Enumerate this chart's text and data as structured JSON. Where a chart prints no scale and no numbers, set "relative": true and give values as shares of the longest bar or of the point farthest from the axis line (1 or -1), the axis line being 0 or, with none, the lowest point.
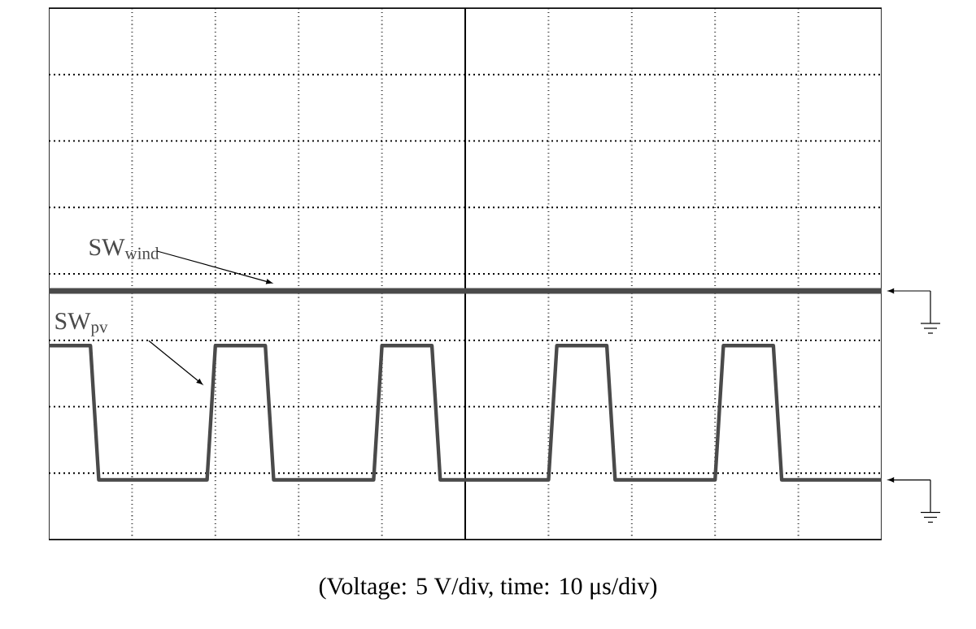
{
  "chart_data": {
    "type": "line",
    "relative": true,
    "grid": true,
    "marker": "none",
    "line_style": "solid",
    "categories": [
      null,
      null,
      null,
      null,
      null,
      null,
      null,
      null,
      null,
      null,
      null,
      null,
      null,
      null,
      null,
      null,
      null,
      null,
      null,
      null,
      null,
      null,
      null,
      null,
      null,
      null,
      null,
      null,
      null,
      null,
      null,
      null,
      null,
      null,
      null,
      null,
      null,
      null,
      null,
      null,
      null,
      null,
      null,
      null,
      null,
      null,
      null,
      null,
      null,
      null,
      null,
      null,
      null,
      null,
      null,
      null,
      null,
      null,
      null,
      null,
      null,
      null,
      null,
      null,
      null,
      null,
      null,
      null,
      null,
      null,
      null,
      null,
      null,
      null,
      null,
      null,
      null,
      null,
      null,
      null,
      null,
      null,
      null,
      null,
      null,
      null,
      null,
      null,
      null,
      null,
      null,
      null,
      null,
      null,
      null,
      null,
      null,
      null,
      null,
      null,
      null
    ],
    "series": [
      {
        "name": "SW$_{wind}$",
        "color": "#4a4a4a",
        "values": [
          1,
          1,
          1,
          1,
          1,
          1,
          1,
          1,
          1,
          1,
          1,
          1,
          1,
          1,
          1,
          1,
          1,
          1,
          1,
          1,
          1,
          1,
          1,
          1,
          1,
          1,
          1,
          1,
          1,
          1,
          1,
          1,
          1,
          1,
          1,
          1,
          1,
          1,
          1,
          1,
          1,
          1,
          1,
          1,
          1,
          1,
          1,
          1,
          1,
          1,
          1,
          1,
          1,
          1,
          1,
          1,
          1,
          1,
          1,
          1,
          1,
          1,
          1,
          1,
          1,
          1,
          1,
          1,
          1,
          1,
          1,
          1,
          1,
          1,
          1,
          1,
          1,
          1,
          1,
          1,
          1,
          1,
          1,
          1,
          1,
          1,
          1,
          1,
          1,
          1,
          1,
          1,
          1,
          1,
          1,
          1,
          1,
          1,
          1,
          1,
          1
        ]
      },
      {
        "name": "SW$_{pv}$",
        "color": "#4a4a4a",
        "values": [
          0.78,
          0.78,
          0.78,
          0.78,
          0.78,
          0.78,
          0.24,
          0.24,
          0.24,
          0.24,
          0.24,
          0.24,
          0.24,
          0.24,
          0.24,
          0.24,
          0.24,
          0.24,
          0.24,
          0.24,
          0.78,
          0.78,
          0.78,
          0.78,
          0.78,
          0.78,
          0.78,
          0.24,
          0.24,
          0.24,
          0.24,
          0.24,
          0.24,
          0.24,
          0.24,
          0.24,
          0.24,
          0.24,
          0.24,
          0.24,
          0.78,
          0.78,
          0.78,
          0.78,
          0.78,
          0.78,
          0.78,
          0.24,
          0.24,
          0.24,
          0.24,
          0.24,
          0.24,
          0.24,
          0.24,
          0.24,
          0.24,
          0.24,
          0.24,
          0.24,
          0.24,
          0.78,
          0.78,
          0.78,
          0.78,
          0.78,
          0.78,
          0.78,
          0.24,
          0.24,
          0.24,
          0.24,
          0.24,
          0.24,
          0.24,
          0.24,
          0.24,
          0.24,
          0.24,
          0.24,
          0.24,
          0.78,
          0.78,
          0.78,
          0.78,
          0.78,
          0.78,
          0.78,
          0.24,
          0.24,
          0.24,
          0.24,
          0.24,
          0.24,
          0.24,
          0.24,
          0.24,
          0.24,
          0.24,
          0.24,
          0.24
        ]
      }
    ],
    "annotations": [
      "(Voltage: 5 V/div, time: 10 μs/div)"
    ]
  }
}
